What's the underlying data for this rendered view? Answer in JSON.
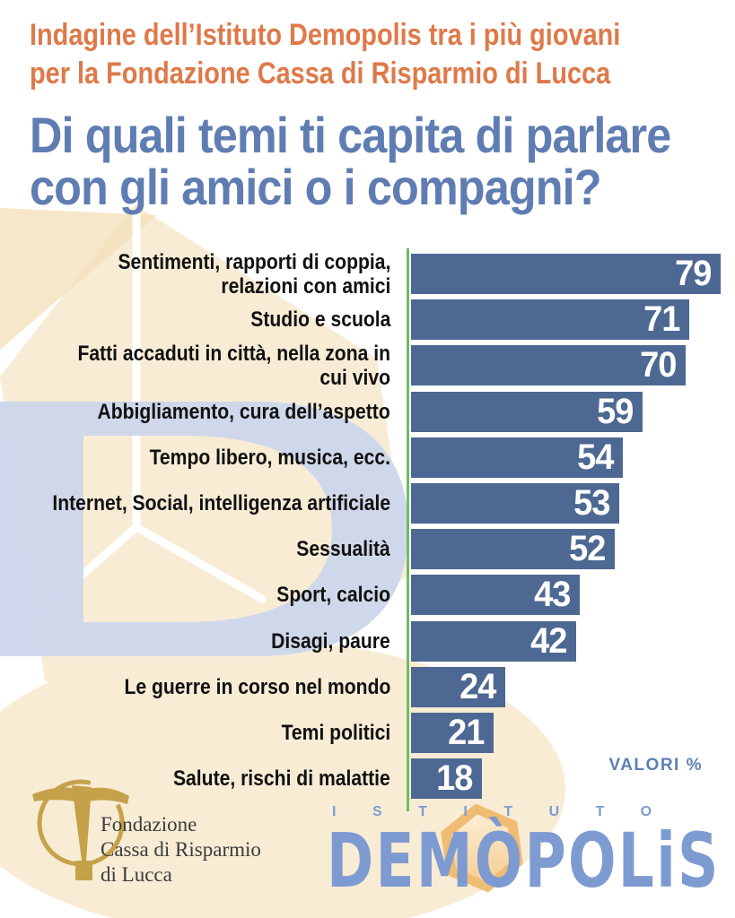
{
  "header": {
    "kicker_line1": "Indagine dell’Istituto Demopolis tra i più giovani",
    "kicker_line2": "per la Fondazione Cassa di Risparmio di Lucca",
    "title_line1": "Di quali temi ti capita di parlare",
    "title_line2": "con gli amici o i compagni?"
  },
  "chart_data": {
    "type": "bar",
    "orientation": "horizontal",
    "title": "Di quali temi ti capita di parlare con gli amici o i compagni?",
    "unit_note": "VALORI %",
    "xlim": [
      0,
      80
    ],
    "grid": false,
    "legend": false,
    "categories": [
      "Sentimenti, rapporti di coppia,\nrelazioni con amici",
      "Studio e scuola",
      "Fatti accaduti in città, nella zona in cui vivo",
      "Abbigliamento, cura dell’aspetto",
      "Tempo libero, musica, ecc.",
      "Internet, Social, intelligenza artificiale",
      "Sessualità",
      "Sport, calcio",
      "Disagi, paure",
      "Le guerre in corso nel mondo",
      "Temi politici",
      "Salute, rischi di malattie"
    ],
    "values": [
      79,
      71,
      70,
      59,
      54,
      53,
      52,
      43,
      42,
      24,
      21,
      18
    ]
  },
  "footer": {
    "fondazione": {
      "line1": "Fondazione",
      "line2": "Cassa di Risparmio",
      "line3": "di Lucca"
    },
    "demopolis": {
      "istituto": "ISTITUTO",
      "wordmark": "DEMÒPOLiS"
    }
  },
  "colors": {
    "accent-orange": "#df7949",
    "title-blue": "#5f7db2",
    "bar-blue": "#4d6892",
    "axis-green": "#6cbd5f",
    "value-white": "#ffffff",
    "label-black": "#111111",
    "valori-blue": "#5d80b7",
    "demopolis-blue": "#7d9bd1",
    "hexagon-orange": "#efb769",
    "fondazione-gold": "#c5a24a",
    "watermark-cream": "#f8ecd5",
    "watermark-blue": "#ccd6eb"
  }
}
